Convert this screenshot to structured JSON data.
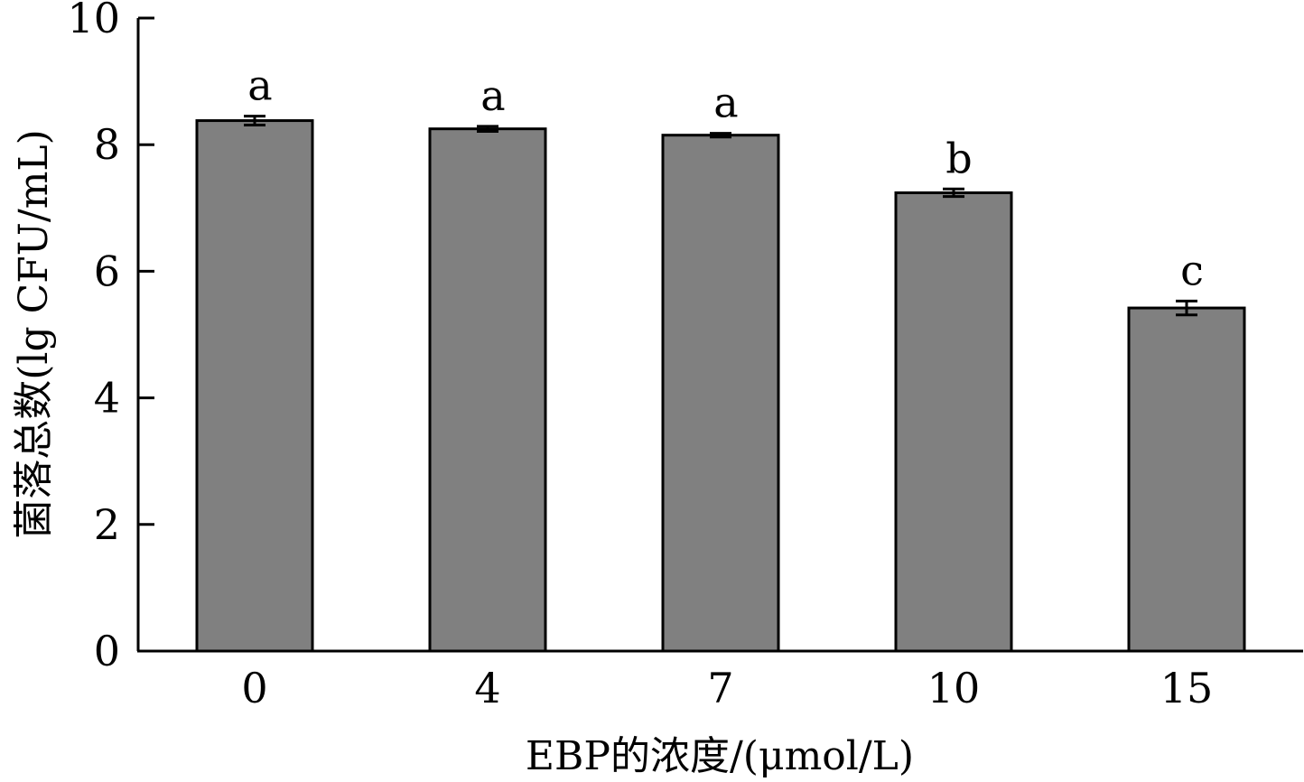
{
  "chart_data": {
    "type": "bar",
    "title": "",
    "xlabel": "EBP的浓度/(μmol/L)",
    "ylabel": "菌落总数(lg CFU/mL)",
    "categories": [
      "0",
      "4",
      "7",
      "10",
      "15"
    ],
    "values": [
      8.38,
      8.25,
      8.15,
      7.24,
      5.42
    ],
    "errors": [
      0.07,
      0.04,
      0.03,
      0.06,
      0.11
    ],
    "significance": [
      "a",
      "a",
      "a",
      "b",
      "c"
    ],
    "ylim": [
      0,
      10
    ],
    "yticks": [
      "0",
      "2",
      "4",
      "6",
      "8",
      "10"
    ],
    "grid": false,
    "legend": "none",
    "bar_color": "#808080",
    "edge_color": "#000000"
  }
}
